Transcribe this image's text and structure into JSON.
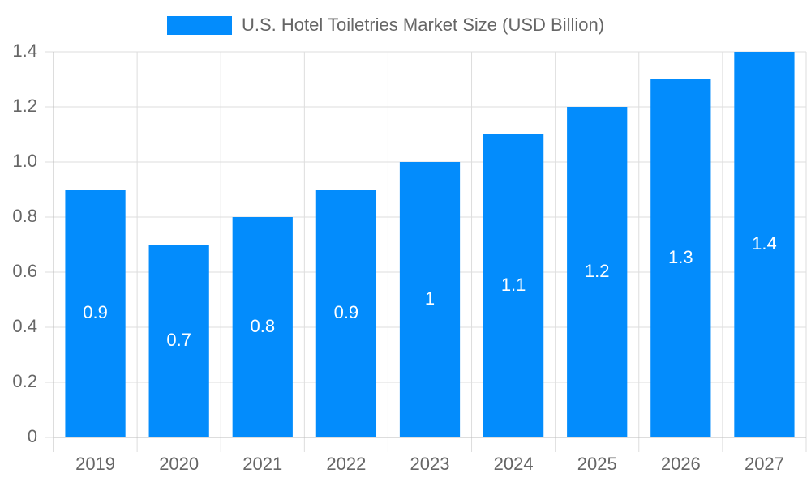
{
  "chart_data": {
    "type": "bar",
    "categories": [
      "2019",
      "2020",
      "2021",
      "2022",
      "2023",
      "2024",
      "2025",
      "2026",
      "2027"
    ],
    "series": [
      {
        "name": "U.S. Hotel Toiletries Market Size (USD Billion)",
        "color": "#038cfc",
        "values": [
          0.9,
          0.7,
          0.8,
          0.9,
          1,
          1.1,
          1.2,
          1.3,
          1.4
        ]
      }
    ],
    "ylim": [
      0,
      1.4
    ],
    "yticks": [
      0,
      0.2,
      0.4,
      0.6,
      0.8,
      {
        "value": 1,
        "label": "1.0"
      },
      1.2,
      1.4
    ],
    "grid": true,
    "legend": "top",
    "data_labels": true
  }
}
